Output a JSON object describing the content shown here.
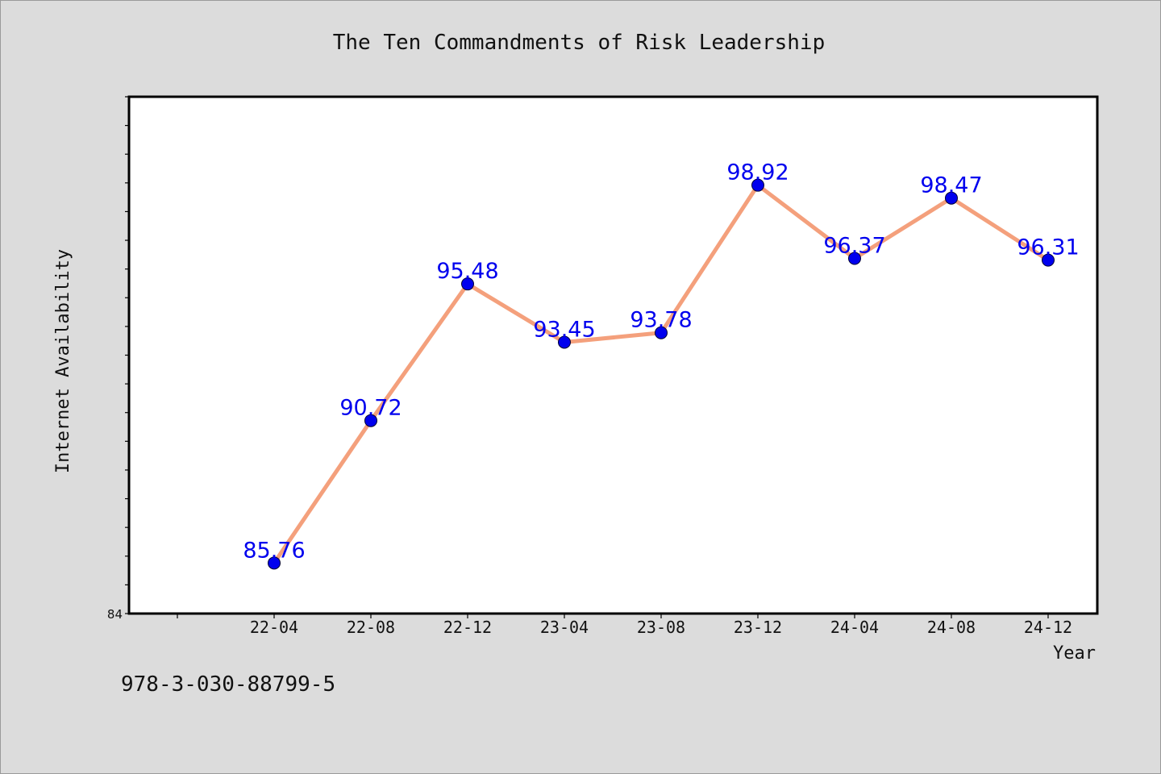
{
  "chart_data": {
    "type": "line",
    "title": "The Ten Commandments of Risk Leadership",
    "xlabel": "Year",
    "ylabel": "Internet Availability",
    "categories": [
      "22-04",
      "22-08",
      "22-12",
      "23-04",
      "23-08",
      "23-12",
      "24-04",
      "24-08",
      "24-12"
    ],
    "values": [
      85.76,
      90.72,
      95.48,
      93.45,
      93.78,
      98.92,
      96.37,
      98.47,
      96.31
    ],
    "ylim": [
      84,
      102
    ],
    "ytick_labels": [
      "84"
    ],
    "data_labels": [
      "85.76",
      "90.72",
      "95.48",
      "93.45",
      "93.78",
      "98.92",
      "96.37",
      "98.47",
      "96.31"
    ],
    "line_color": "#f4a07c",
    "marker_color": "#0000ee",
    "label_color": "#0000ee",
    "grid": false,
    "legend": "none"
  },
  "footer": {
    "isbn": "978-3-030-88799-5"
  }
}
